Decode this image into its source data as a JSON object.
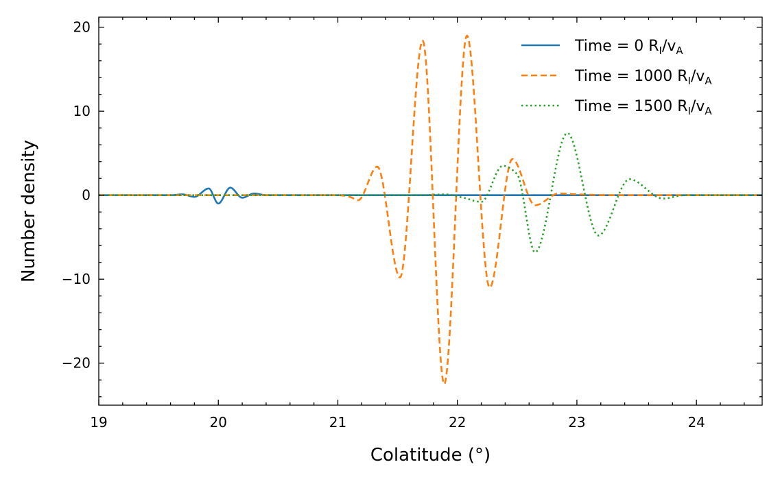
{
  "chart_data": {
    "type": "line",
    "title": "",
    "xlabel": "Colatitude (°)",
    "ylabel": "Number density",
    "xlim": [
      19,
      24.55
    ],
    "ylim": [
      -25,
      21.2
    ],
    "xticks": [
      19,
      20,
      21,
      22,
      23,
      24
    ],
    "yticks": [
      -20,
      -10,
      0,
      10,
      20
    ],
    "ytick_labels": [
      "−20",
      "−10",
      "0",
      "10",
      "20"
    ],
    "grid": false,
    "legend": "top-right",
    "series": [
      {
        "name": "Time = 0 R_I/v_A",
        "label": {
          "prefix": "Time = 0 R",
          "sub1": "I",
          "mid": "/v",
          "sub2": "A"
        },
        "color": "#1f77b4",
        "dash": "",
        "x": [
          19.0,
          19.6,
          19.7,
          19.8,
          19.92,
          20.0,
          20.1,
          20.2,
          20.3,
          20.4,
          20.5,
          24.55
        ],
        "y": [
          0,
          0,
          0.1,
          -0.2,
          0.8,
          -1.0,
          0.9,
          -0.3,
          0.2,
          0,
          0,
          0
        ]
      },
      {
        "name": "Time = 1000 R_I/v_A",
        "label": {
          "prefix": "Time = 1000 R",
          "sub1": "I",
          "mid": "/v",
          "sub2": "A"
        },
        "color": "#ff7f0e",
        "dash": "9,5",
        "x": [
          19.0,
          21.0,
          21.1,
          21.17,
          21.33,
          21.52,
          21.71,
          21.89,
          22.08,
          22.27,
          22.46,
          22.65,
          22.85,
          23.0,
          23.3,
          24.55
        ],
        "y": [
          0,
          0,
          -0.2,
          -0.6,
          3.4,
          -9.8,
          18.4,
          -22.5,
          19.0,
          -11.0,
          4.3,
          -1.2,
          0.2,
          0.1,
          0,
          0
        ]
      },
      {
        "name": "Time = 1500 R_I/v_A",
        "label": {
          "prefix": "Time = 1500 R",
          "sub1": "I",
          "mid": "/v",
          "sub2": "A"
        },
        "color": "#2ca02c",
        "dash": "2.5,4",
        "x": [
          19.0,
          21.7,
          21.9,
          22.05,
          22.2,
          22.38,
          22.5,
          22.65,
          22.92,
          23.18,
          23.44,
          23.72,
          23.9,
          24.55
        ],
        "y": [
          0,
          0,
          0.1,
          -0.3,
          -0.8,
          3.5,
          2.5,
          -6.8,
          7.4,
          -4.8,
          1.9,
          -0.4,
          0,
          0
        ]
      }
    ]
  }
}
